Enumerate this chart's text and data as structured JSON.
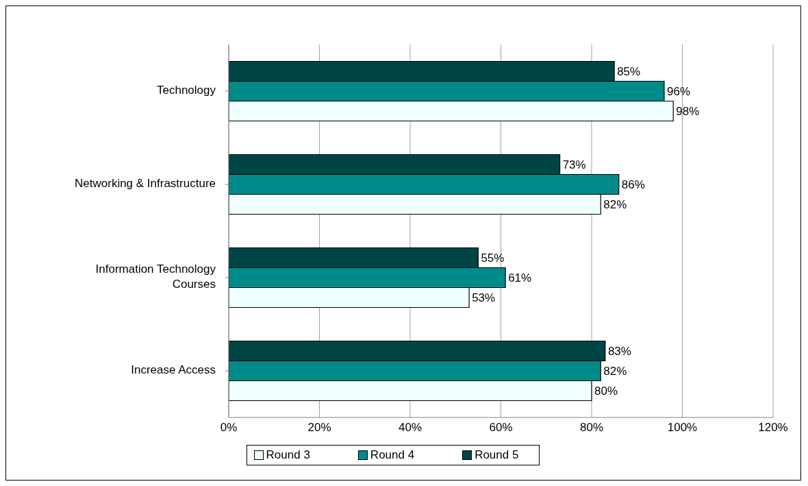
{
  "chart_data": {
    "type": "bar",
    "orientation": "horizontal",
    "categories": [
      "Technology",
      "Networking & Infrastructure",
      "Information Technology Courses",
      "Increase Access"
    ],
    "series": [
      {
        "name": "Round 3",
        "color": "#f0ffff",
        "values": [
          98,
          82,
          53,
          80
        ],
        "value_labels": [
          "98%",
          "82%",
          "53%",
          "80%"
        ]
      },
      {
        "name": "Round 4",
        "color": "#008b8b",
        "values": [
          96,
          86,
          61,
          82
        ],
        "value_labels": [
          "96%",
          "86%",
          "61%",
          "82%"
        ]
      },
      {
        "name": "Round 5",
        "color": "#004545",
        "values": [
          85,
          73,
          55,
          83
        ],
        "value_labels": [
          "85%",
          "73%",
          "55%",
          "83%"
        ]
      }
    ],
    "xlim": [
      0,
      120
    ],
    "xticks": [
      {
        "value": 0,
        "label": "0%"
      },
      {
        "value": 20,
        "label": "20%"
      },
      {
        "value": 40,
        "label": "40%"
      },
      {
        "value": 60,
        "label": "60%"
      },
      {
        "value": 80,
        "label": "80%"
      },
      {
        "value": 100,
        "label": "100%"
      },
      {
        "value": 120,
        "label": "120%"
      }
    ],
    "grid": "x",
    "legend": "bottom"
  }
}
